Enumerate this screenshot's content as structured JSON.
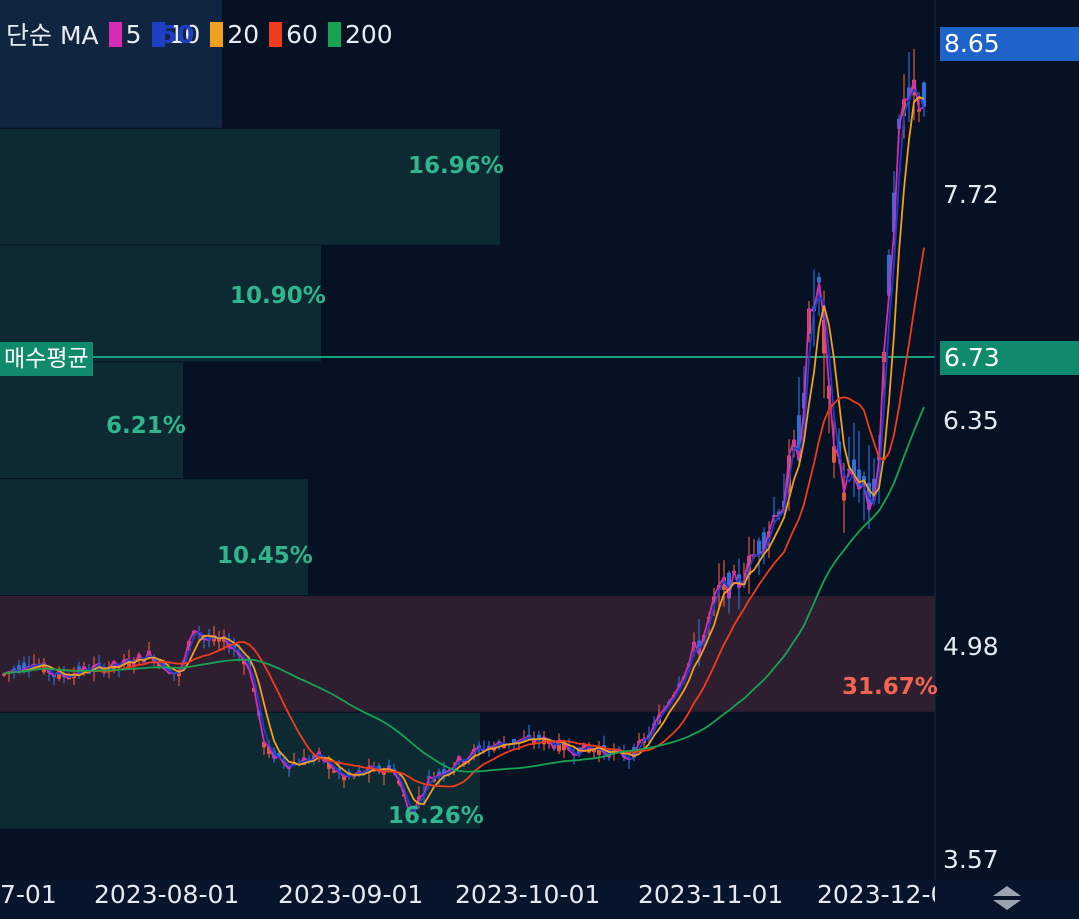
{
  "legend": {
    "prefix": "단순 MA",
    "items": [
      {
        "label": "5",
        "color": "#d62bb5"
      },
      {
        "label": "10",
        "color": "#1d3fc6"
      },
      {
        "label": "20",
        "color": "#f0a020"
      },
      {
        "label": "60",
        "color": "#ef3c1a"
      },
      {
        "label": "200",
        "color": "#17a351"
      }
    ]
  },
  "overlay_text": ".50",
  "price_axis": {
    "labels": [
      "7.72",
      "6.35",
      "4.98",
      "3.57"
    ],
    "current_price": "8.65",
    "current_price_color": "#1e63c9",
    "avg_price": "6.73",
    "avg_price_color": "#108a6c"
  },
  "avg_price_label": "매수평균",
  "date_axis": [
    "7-01",
    "2023-08-01",
    "2023-09-01",
    "2023-10-01",
    "2023-11-01",
    "2023-12-0"
  ],
  "chart_data": {
    "type": "candlestick",
    "price_range": [
      3.57,
      8.65
    ],
    "avg_price": 6.73,
    "volume_profile": [
      {
        "low": 8.3,
        "high": 8.9,
        "pct": ""
      },
      {
        "low": 7.5,
        "high": 8.3,
        "pct": "16.96%"
      },
      {
        "low": 6.7,
        "high": 7.5,
        "pct": "10.90%"
      },
      {
        "low": 5.9,
        "high": 6.7,
        "pct": "6.21%"
      },
      {
        "low": 5.1,
        "high": 5.9,
        "pct": "10.45%"
      },
      {
        "low": 4.3,
        "high": 5.1,
        "pct": "31.67%"
      },
      {
        "low": 3.5,
        "high": 4.3,
        "pct": "16.26%"
      }
    ],
    "candle_colors": {
      "up": "#e0593c",
      "down": "#2f6ed6"
    },
    "ma_colors": {
      "ma5": "#d62bb5",
      "ma10": "#1d3fc6",
      "ma20": "#f0a020",
      "ma60": "#ef3c1a",
      "ma200": "#17a351"
    }
  }
}
